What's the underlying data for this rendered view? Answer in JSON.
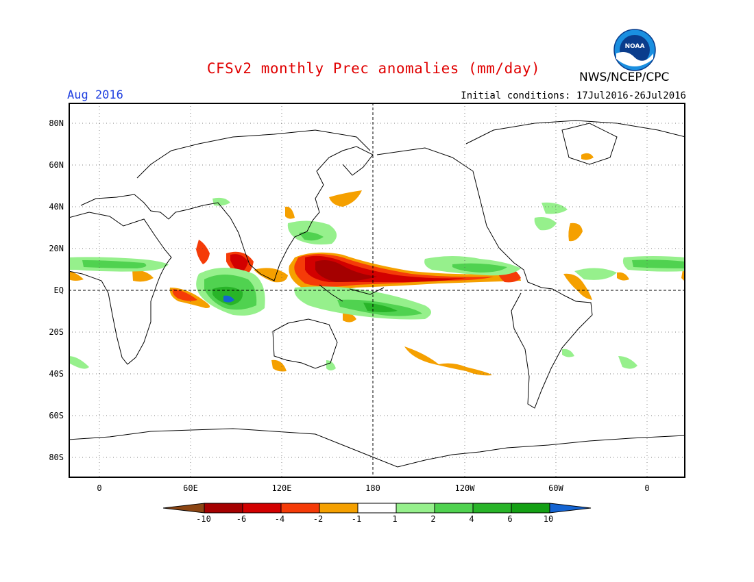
{
  "header": {
    "title": "CFSv2 monthly Prec anomalies (mm/day)",
    "agency": "NWS/NCEP/CPC",
    "logo_text": "NOAA",
    "valid_month": "Aug 2016",
    "initial_conditions": "Initial conditions: 17Jul2016-26Jul2016"
  },
  "map": {
    "lat_labels": [
      "80N",
      "60N",
      "40N",
      "20N",
      "EQ",
      "20S",
      "40S",
      "60S",
      "80S"
    ],
    "lon_labels": [
      "0",
      "60E",
      "120E",
      "180",
      "120W",
      "60W",
      "0"
    ],
    "reference_lines": [
      "EQ",
      "180"
    ]
  },
  "colorbar": {
    "labels": [
      "-10",
      "-6",
      "-4",
      "-2",
      "-1",
      "1",
      "2",
      "4",
      "6",
      "10"
    ],
    "colors": [
      "#8b4513",
      "#a50000",
      "#d20000",
      "#f53b08",
      "#f5a000",
      "#ffffff",
      "#96f08c",
      "#50d250",
      "#28b428",
      "#14a014",
      "#1464d2"
    ]
  },
  "chart_data": {
    "type": "heatmap",
    "title": "CFSv2 monthly Prec anomalies (mm/day)",
    "period": "Aug 2016",
    "xlabel": "",
    "ylabel": "",
    "xlim": [
      "0",
      "0"
    ],
    "ylim": [
      "90S",
      "90N"
    ],
    "grid": true,
    "legend": "bottom",
    "units": "mm/day",
    "levels": [
      -10,
      -6,
      -4,
      -2,
      -1,
      1,
      2,
      4,
      6,
      10
    ],
    "regions": [
      {
        "region": "central/western tropical Pacific 5N-20N (120E-120W)",
        "anomaly": "-4 to -10"
      },
      {
        "region": "eastern Pacific ITCZ 5N-15N",
        "anomaly": "-2 to -6"
      },
      {
        "region": "Bay of Bengal / South China Sea",
        "anomaly": "-2 to -6"
      },
      {
        "region": "eastern equatorial Indian Ocean",
        "anomaly": "+2 to +10"
      },
      {
        "region": "Maritime Continent / western Pacific south of equator",
        "anomaly": "+2 to +6"
      },
      {
        "region": "tropical North Atlantic / West Africa 10N-20N",
        "anomaly": "+1 to +4"
      },
      {
        "region": "western equatorial Indian Ocean 5S-10S",
        "anomaly": "-2 to -6"
      },
      {
        "region": "subtropical South Pacific 25S-40S",
        "anomaly": "-1 to -2"
      },
      {
        "region": "North Pacific near Japan 30N-40N",
        "anomaly": "-1 to -2"
      }
    ]
  }
}
